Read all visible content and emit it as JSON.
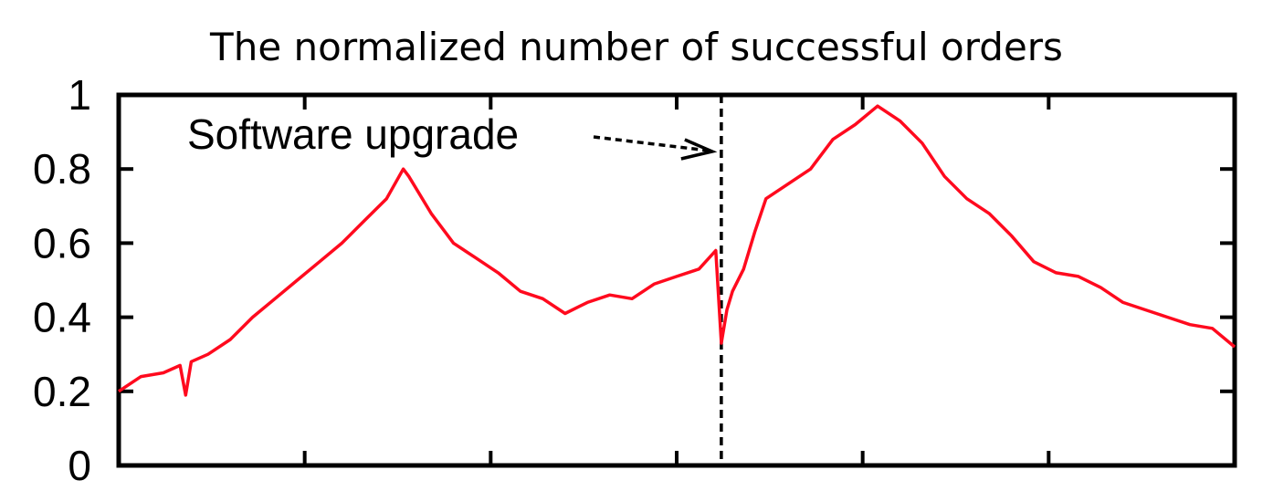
{
  "chart_data": {
    "type": "line",
    "title": "The normalized number of successful orders",
    "xlabel": "",
    "ylabel": "",
    "ylim": [
      0,
      1
    ],
    "xlim": [
      0,
      1
    ],
    "yticks": [
      "0",
      "0.2",
      "0.4",
      "0.6",
      "0.8",
      "1"
    ],
    "grid": false,
    "annotation": {
      "text": "Software upgrade",
      "event_x": 0.54
    },
    "series": [
      {
        "color": "#ff0a1e",
        "x": [
          0.0,
          0.02,
          0.04,
          0.055,
          0.06,
          0.065,
          0.08,
          0.1,
          0.12,
          0.14,
          0.16,
          0.18,
          0.2,
          0.22,
          0.24,
          0.255,
          0.26,
          0.28,
          0.3,
          0.32,
          0.34,
          0.36,
          0.38,
          0.4,
          0.42,
          0.44,
          0.46,
          0.48,
          0.5,
          0.52,
          0.535,
          0.54,
          0.545,
          0.55,
          0.56,
          0.57,
          0.58,
          0.59,
          0.6,
          0.62,
          0.64,
          0.66,
          0.68,
          0.7,
          0.72,
          0.74,
          0.76,
          0.78,
          0.8,
          0.82,
          0.84,
          0.86,
          0.88,
          0.9,
          0.92,
          0.94,
          0.96,
          0.98,
          1.0
        ],
        "y": [
          0.2,
          0.24,
          0.25,
          0.27,
          0.19,
          0.28,
          0.3,
          0.34,
          0.4,
          0.45,
          0.5,
          0.55,
          0.6,
          0.66,
          0.72,
          0.8,
          0.78,
          0.68,
          0.6,
          0.56,
          0.52,
          0.47,
          0.45,
          0.41,
          0.44,
          0.46,
          0.45,
          0.49,
          0.51,
          0.53,
          0.58,
          0.33,
          0.42,
          0.47,
          0.53,
          0.63,
          0.72,
          0.74,
          0.76,
          0.8,
          0.88,
          0.92,
          0.97,
          0.93,
          0.87,
          0.78,
          0.72,
          0.68,
          0.62,
          0.55,
          0.52,
          0.51,
          0.48,
          0.44,
          0.42,
          0.4,
          0.38,
          0.37,
          0.32
        ]
      }
    ]
  }
}
